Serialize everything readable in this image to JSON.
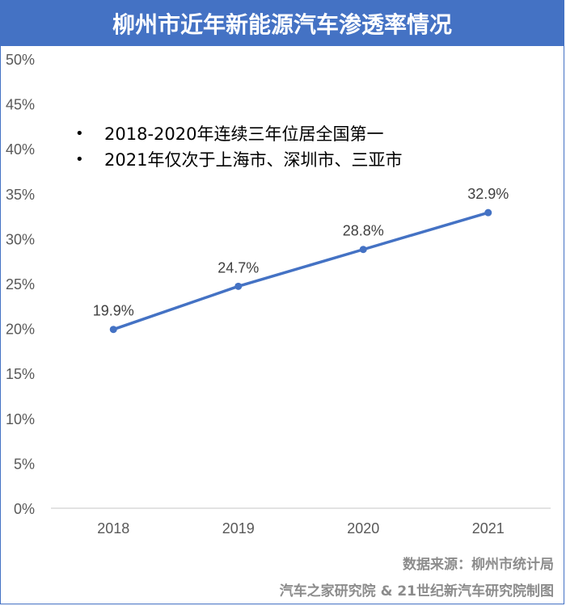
{
  "header": {
    "title": "柳州市近年新能源汽车渗透率情况"
  },
  "notes": [
    "2018-2020年连续三年位居全国第一",
    "2021年仅次于上海市、深圳市、三亚市"
  ],
  "footer": {
    "source": "数据来源：柳州市统计局",
    "credit": "汽车之家研究院 & 21世纪新汽车研究院制图"
  },
  "colors": {
    "accent": "#4472c4",
    "line": "#4472c4",
    "footer_text": "#8c8c8c"
  },
  "chart_data": {
    "type": "line",
    "categories": [
      "2018",
      "2019",
      "2020",
      "2021"
    ],
    "series": [
      {
        "values": [
          19.9,
          24.7,
          28.8,
          32.9
        ],
        "labels": [
          "19.9%",
          "24.7%",
          "28.8%",
          "32.9%"
        ]
      }
    ],
    "ylim": [
      0,
      50
    ],
    "yticks": [
      "0%",
      "5%",
      "10%",
      "15%",
      "20%",
      "25%",
      "30%",
      "35%",
      "40%",
      "45%",
      "50%"
    ],
    "grid": false,
    "title": "",
    "xlabel": "",
    "ylabel": ""
  }
}
